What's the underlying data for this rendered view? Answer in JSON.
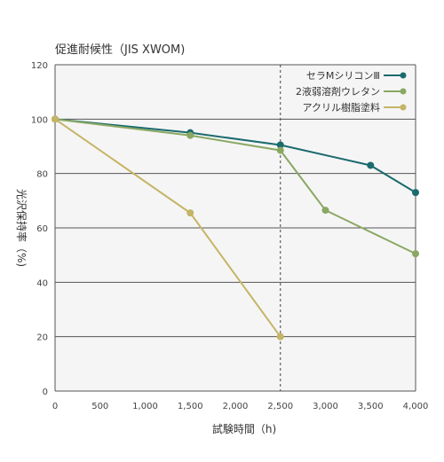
{
  "chart_data": {
    "type": "line",
    "title": "促進耐候性（JIS XWOM)",
    "xlabel": "試験時間（h)",
    "ylabel": "光沢保持率（%)",
    "xlim": [
      0,
      4000
    ],
    "ylim": [
      0,
      120
    ],
    "x_ticks": [
      0,
      500,
      1000,
      1500,
      2000,
      2500,
      3000,
      3500,
      4000
    ],
    "x_tick_labels": [
      "0",
      "500",
      "1,000",
      "1,500",
      "2,000",
      "2,500",
      "3,000",
      "3,500",
      "4,000"
    ],
    "y_ticks": [
      0,
      20,
      40,
      60,
      80,
      100,
      120
    ],
    "y_tick_labels": [
      "0",
      "20",
      "40",
      "60",
      "80",
      "100",
      "120"
    ],
    "grid": "horizontal",
    "reference_line_x": 2500,
    "legend_position": "top-right",
    "series": [
      {
        "name": "セラMシリコンⅢ",
        "color": "#1b6a6e",
        "x": [
          0,
          1500,
          2500,
          3500,
          4000
        ],
        "y": [
          100,
          95,
          90.5,
          83,
          73
        ]
      },
      {
        "name": "2液弱溶剤ウレタン",
        "color": "#8aa863",
        "x": [
          0,
          1500,
          2500,
          3000,
          4000
        ],
        "y": [
          100,
          94,
          88.5,
          66.5,
          50.5
        ]
      },
      {
        "name": "アクリル樹脂塗料",
        "color": "#c6b466",
        "x": [
          0,
          1500,
          2500
        ],
        "y": [
          100,
          65.5,
          20
        ]
      }
    ]
  }
}
